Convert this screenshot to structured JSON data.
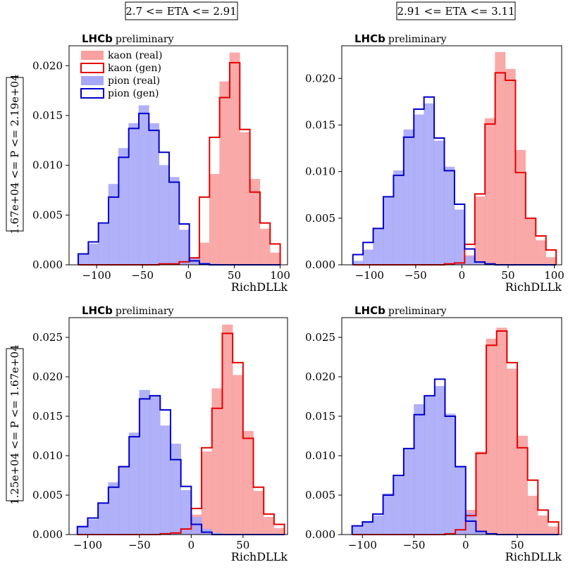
{
  "figure": {
    "column_labels": [
      "2.7 <= ETA <= 2.91",
      "2.91 <= ETA <= 3.11"
    ],
    "row_labels": [
      "1.67e+04 <= P <= 2.19e+04",
      "1.25e+04 <= P <= 1.67e+04"
    ],
    "brand": "LHCb",
    "brand_suffix": "preliminary",
    "colors": {
      "kaon_real": "#f9a0a0",
      "kaon_gen": "#e60000",
      "pion_real": "#a8a8f8",
      "pion_gen": "#0000cc"
    }
  },
  "chart_data": [
    {
      "type": "histogram",
      "xlabel": "RichDLLk",
      "xlim": [
        -130,
        108
      ],
      "ylim": [
        0,
        0.022
      ],
      "xticks": [
        -100,
        -50,
        0,
        50,
        100
      ],
      "yticks": [
        "0.000",
        "0.005",
        "0.010",
        "0.015",
        "0.020"
      ],
      "bin_edges": [
        -120,
        -109,
        -98,
        -87,
        -76,
        -65,
        -54,
        -43,
        -32,
        -21,
        -10,
        1,
        12,
        23,
        34,
        45,
        56,
        67,
        78,
        89,
        100
      ],
      "legend": {
        "position": "top-left",
        "entries": [
          "kaon (real)",
          "kaon (gen)",
          "pion (real)",
          "pion (gen)"
        ]
      },
      "series": [
        {
          "name": "kaon (real)",
          "style": "filled",
          "values": [
            0,
            0,
            0,
            0,
            0,
            0,
            0,
            0,
            0.0001,
            0.0001,
            0.0002,
            0.0005,
            0.0022,
            0.0091,
            0.0184,
            0.0213,
            0.0133,
            0.0086,
            0.0036,
            0.0012
          ]
        },
        {
          "name": "kaon (gen)",
          "style": "step",
          "values": [
            0,
            0,
            0,
            0,
            0,
            0,
            0,
            0,
            0.0001,
            0.0001,
            0.0003,
            0.0007,
            0.0068,
            0.0128,
            0.0168,
            0.0203,
            0.0136,
            0.0073,
            0.0042,
            0.0021
          ]
        },
        {
          "name": "pion (real)",
          "style": "filled",
          "values": [
            0.0011,
            0.0021,
            0.0041,
            0.0081,
            0.0117,
            0.0142,
            0.016,
            0.0142,
            0.01,
            0.0088,
            0.0035,
            0.0007,
            0.0002,
            0.0001,
            0,
            0,
            0,
            0,
            0,
            0
          ]
        },
        {
          "name": "pion (gen)",
          "style": "step",
          "values": [
            0.0011,
            0.0023,
            0.0042,
            0.0068,
            0.0108,
            0.0137,
            0.0152,
            0.0135,
            0.0113,
            0.0083,
            0.0041,
            0.0004,
            0.0001,
            0,
            0,
            0,
            0,
            0,
            0,
            0
          ]
        }
      ]
    },
    {
      "type": "histogram",
      "xlabel": "RichDLLk",
      "xlim": [
        -130,
        108
      ],
      "ylim": [
        0,
        0.0235
      ],
      "xticks": [
        -100,
        -50,
        0,
        50,
        100
      ],
      "yticks": [
        "0.000",
        "0.005",
        "0.010",
        "0.015",
        "0.020"
      ],
      "bin_edges": [
        -118,
        -107,
        -96,
        -85,
        -74,
        -63,
        -52,
        -41,
        -30,
        -19,
        -8,
        3,
        14,
        25,
        36,
        47,
        58,
        69,
        80,
        91,
        102
      ],
      "series": [
        {
          "name": "kaon (real)",
          "style": "filled",
          "values": [
            0,
            0,
            0,
            0,
            0,
            0,
            0,
            0,
            0,
            0.0001,
            0.0001,
            0.001,
            0.0073,
            0.0157,
            0.0228,
            0.021,
            0.0123,
            0.0049,
            0.0026,
            0.0008
          ]
        },
        {
          "name": "kaon (gen)",
          "style": "step",
          "values": [
            0,
            0,
            0,
            0,
            0,
            0,
            0,
            0,
            0,
            0.0001,
            0.0002,
            0.0022,
            0.0076,
            0.0151,
            0.0206,
            0.0198,
            0.0099,
            0.005,
            0.0031,
            0.0016
          ]
        },
        {
          "name": "pion (real)",
          "style": "filled",
          "values": [
            0.0004,
            0.0016,
            0.0038,
            0.0072,
            0.0101,
            0.0145,
            0.0161,
            0.0173,
            0.0133,
            0.0105,
            0.0059,
            0.0009,
            0.0002,
            0.0001,
            0,
            0,
            0,
            0,
            0,
            0
          ]
        },
        {
          "name": "pion (gen)",
          "style": "step",
          "values": [
            0.0011,
            0.0024,
            0.0039,
            0.0073,
            0.0096,
            0.0137,
            0.0167,
            0.018,
            0.0136,
            0.0101,
            0.0065,
            0.0017,
            0.0003,
            0.0001,
            0,
            0,
            0,
            0,
            0,
            0
          ]
        }
      ]
    },
    {
      "type": "histogram",
      "xlabel": "RichDLLk",
      "xlim": [
        -118,
        93
      ],
      "ylim": [
        0,
        0.0275
      ],
      "xticks": [
        -100,
        -50,
        0,
        50
      ],
      "yticks": [
        "0.000",
        "0.005",
        "0.010",
        "0.015",
        "0.020",
        "0.025"
      ],
      "bin_edges": [
        -110,
        -100,
        -90,
        -80,
        -70,
        -60,
        -50,
        -40,
        -30,
        -20,
        -10,
        0,
        10,
        20,
        30,
        40,
        50,
        60,
        70,
        80,
        90
      ],
      "series": [
        {
          "name": "kaon (real)",
          "style": "filled",
          "values": [
            0,
            0,
            0,
            0,
            0,
            0,
            0,
            0,
            0.0001,
            0.0002,
            0.0004,
            0.0025,
            0.0105,
            0.0185,
            0.0266,
            0.0202,
            0.0131,
            0.0055,
            0.0022,
            0.0008
          ]
        },
        {
          "name": "kaon (gen)",
          "style": "step",
          "values": [
            0,
            0,
            0,
            0,
            0,
            0,
            0,
            0,
            0.0001,
            0.0002,
            0.0007,
            0.0033,
            0.011,
            0.016,
            0.0255,
            0.0218,
            0.0122,
            0.006,
            0.0026,
            0.0013
          ]
        },
        {
          "name": "pion (real)",
          "style": "filled",
          "values": [
            0.0011,
            0.0019,
            0.004,
            0.0066,
            0.0087,
            0.0129,
            0.0183,
            0.0176,
            0.0138,
            0.0115,
            0.0056,
            0.0022,
            0.0007,
            0.0002,
            0,
            0,
            0,
            0,
            0,
            0
          ]
        },
        {
          "name": "pion (gen)",
          "style": "step",
          "values": [
            0.001,
            0.0021,
            0.004,
            0.006,
            0.0086,
            0.0124,
            0.0172,
            0.0176,
            0.0158,
            0.0095,
            0.0061,
            0.0013,
            0.0003,
            0,
            0,
            0,
            0,
            0,
            0,
            0
          ]
        }
      ]
    },
    {
      "type": "histogram",
      "xlabel": "RichDLLk",
      "xlim": [
        -120,
        93
      ],
      "ylim": [
        0,
        0.0275
      ],
      "xticks": [
        -100,
        -50,
        0,
        50
      ],
      "yticks": [
        "0.000",
        "0.005",
        "0.010",
        "0.015",
        "0.020",
        "0.025"
      ],
      "bin_edges": [
        -110,
        -100,
        -90,
        -80,
        -70,
        -60,
        -50,
        -40,
        -30,
        -20,
        -10,
        0,
        10,
        20,
        30,
        40,
        50,
        60,
        70,
        80,
        90
      ],
      "series": [
        {
          "name": "kaon (real)",
          "style": "filled",
          "values": [
            0,
            0,
            0,
            0,
            0,
            0,
            0,
            0,
            0,
            0.0001,
            0.0004,
            0.0031,
            0.0105,
            0.0248,
            0.0262,
            0.021,
            0.0125,
            0.0049,
            0.0024,
            0.001
          ]
        },
        {
          "name": "kaon (gen)",
          "style": "step",
          "values": [
            0,
            0,
            0,
            0,
            0,
            0,
            0,
            0,
            0,
            0.0001,
            0.0006,
            0.0024,
            0.0103,
            0.024,
            0.0258,
            0.0218,
            0.011,
            0.0069,
            0.0031,
            0.0016
          ]
        },
        {
          "name": "pion (real)",
          "style": "filled",
          "values": [
            0.001,
            0.0017,
            0.0024,
            0.0052,
            0.0074,
            0.0109,
            0.0165,
            0.0175,
            0.0188,
            0.0153,
            0.0087,
            0.0027,
            0.0004,
            0.0001,
            0,
            0,
            0,
            0,
            0,
            0
          ]
        },
        {
          "name": "pion (gen)",
          "style": "step",
          "values": [
            0.0011,
            0.0016,
            0.0026,
            0.005,
            0.0075,
            0.0109,
            0.0152,
            0.0176,
            0.0197,
            0.015,
            0.0086,
            0.0017,
            0.0004,
            0.0001,
            0,
            0,
            0,
            0,
            0,
            0
          ]
        }
      ]
    }
  ]
}
